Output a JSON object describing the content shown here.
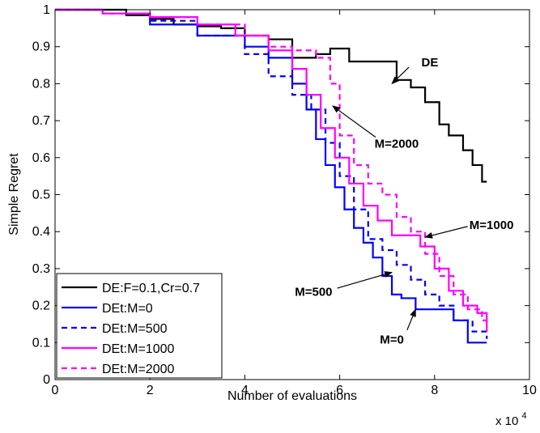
{
  "chart_data": {
    "type": "line",
    "xlabel": "Number of evaluations",
    "ylabel": "Simple Regret",
    "x_multiplier_label": "x 10",
    "x_multiplier_exp": "4",
    "xlim": [
      0,
      10
    ],
    "ylim": [
      0,
      1
    ],
    "xticks": [
      "0",
      "2",
      "4",
      "6",
      "8",
      "10"
    ],
    "yticks": [
      "0",
      "0.1",
      "0.2",
      "0.3",
      "0.4",
      "0.5",
      "0.6",
      "0.7",
      "0.8",
      "0.9",
      "1"
    ],
    "legend_position": "bottom-left",
    "series": [
      {
        "name": "DE:F=0.1,Cr=0.7",
        "color": "#000000",
        "dash": "solid",
        "x": [
          0,
          1.5,
          2.0,
          2.5,
          3.0,
          3.5,
          4.0,
          4.5,
          5.0,
          5.5,
          5.8,
          6.2,
          6.8,
          7.2,
          7.5,
          7.8,
          8.1,
          8.3,
          8.6,
          8.8,
          9.0,
          9.1
        ],
        "y": [
          1,
          0.985,
          0.975,
          0.96,
          0.955,
          0.95,
          0.93,
          0.92,
          0.87,
          0.88,
          0.895,
          0.86,
          0.86,
          0.81,
          0.79,
          0.75,
          0.69,
          0.66,
          0.62,
          0.58,
          0.535,
          0.535
        ]
      },
      {
        "name": "DEt:M=0",
        "color": "#0000ff",
        "dash": "solid",
        "x": [
          0,
          1,
          2,
          3,
          4,
          4.5,
          5.0,
          5.3,
          5.5,
          5.7,
          5.9,
          6.1,
          6.3,
          6.5,
          6.7,
          6.9,
          7.1,
          7.3,
          7.6,
          8.0,
          8.4,
          8.7,
          9.1
        ],
        "y": [
          1,
          0.99,
          0.96,
          0.93,
          0.9,
          0.87,
          0.8,
          0.73,
          0.65,
          0.58,
          0.52,
          0.46,
          0.41,
          0.37,
          0.33,
          0.28,
          0.23,
          0.22,
          0.19,
          0.19,
          0.16,
          0.1,
          0.1
        ]
      },
      {
        "name": "DEt:M=500",
        "color": "#0000ff",
        "dash": "dashed",
        "x": [
          0,
          1,
          2,
          3,
          4,
          4.5,
          5.0,
          5.4,
          5.7,
          6.0,
          6.3,
          6.6,
          6.9,
          7.2,
          7.5,
          7.8,
          8.1,
          8.4,
          8.8,
          9.1
        ],
        "y": [
          1,
          0.99,
          0.97,
          0.93,
          0.88,
          0.82,
          0.77,
          0.73,
          0.64,
          0.55,
          0.46,
          0.38,
          0.35,
          0.31,
          0.27,
          0.23,
          0.2,
          0.16,
          0.13,
          0.11
        ]
      },
      {
        "name": "DEt:M=1000",
        "color": "#ff00ff",
        "dash": "solid",
        "x": [
          0,
          1,
          2,
          3,
          3.8,
          4.5,
          5.0,
          5.3,
          5.6,
          5.9,
          6.2,
          6.5,
          6.8,
          7.1,
          7.4,
          7.7,
          8.0,
          8.3,
          8.6,
          8.9,
          9.1
        ],
        "y": [
          1,
          0.99,
          0.98,
          0.96,
          0.93,
          0.89,
          0.84,
          0.77,
          0.68,
          0.6,
          0.53,
          0.47,
          0.43,
          0.39,
          0.39,
          0.36,
          0.3,
          0.24,
          0.2,
          0.18,
          0.13
        ]
      },
      {
        "name": "DEt:M=2000",
        "color": "#ff00ff",
        "dash": "dashed",
        "x": [
          0,
          1,
          2,
          3,
          4,
          4.5,
          5.0,
          5.5,
          5.8,
          6.0,
          6.3,
          6.6,
          6.9,
          7.2,
          7.5,
          7.8,
          8.1,
          8.4,
          8.7,
          9.0,
          9.1
        ],
        "y": [
          1,
          0.99,
          0.98,
          0.96,
          0.93,
          0.9,
          0.89,
          0.87,
          0.8,
          0.66,
          0.58,
          0.53,
          0.5,
          0.44,
          0.4,
          0.34,
          0.28,
          0.23,
          0.19,
          0.16,
          0.15
        ]
      }
    ],
    "annotations": [
      {
        "text": "DE",
        "text_x": 7.9,
        "text_y": 0.86,
        "arrow_x": 7.1,
        "arrow_y": 0.8
      },
      {
        "text": "M=2000",
        "text_x": 7.2,
        "text_y": 0.64,
        "arrow_x": 5.85,
        "arrow_y": 0.74
      },
      {
        "text": "M=1000",
        "text_x": 9.2,
        "text_y": 0.42,
        "arrow_x": 7.8,
        "arrow_y": 0.385
      },
      {
        "text": "M=500",
        "text_x": 5.45,
        "text_y": 0.24,
        "arrow_x": 7.1,
        "arrow_y": 0.29
      },
      {
        "text": "M=0",
        "text_x": 7.1,
        "text_y": 0.11,
        "arrow_x": 7.6,
        "arrow_y": 0.19
      }
    ]
  }
}
